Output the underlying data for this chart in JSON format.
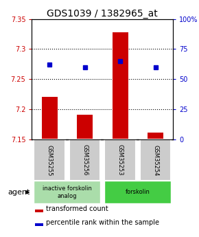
{
  "title": "GDS1039 / 1382965_at",
  "samples": [
    "GSM35255",
    "GSM35256",
    "GSM35253",
    "GSM35254"
  ],
  "bar_values": [
    7.221,
    7.191,
    7.328,
    7.162
  ],
  "bar_base": 7.15,
  "bar_color": "#cc0000",
  "dot_values": [
    62,
    60,
    65,
    60
  ],
  "dot_color": "#0000cc",
  "ylim_left": [
    7.15,
    7.35
  ],
  "ylim_right": [
    0,
    100
  ],
  "yticks_left": [
    7.15,
    7.2,
    7.25,
    7.3,
    7.35
  ],
  "yticks_right": [
    0,
    25,
    50,
    75,
    100
  ],
  "gridlines": [
    7.2,
    7.25,
    7.3
  ],
  "agent_groups": [
    {
      "label": "inactive forskolin\nanalog",
      "indices": [
        0,
        1
      ],
      "color": "#aaddaa"
    },
    {
      "label": "forskolin",
      "indices": [
        2,
        3
      ],
      "color": "#44cc44"
    }
  ],
  "agent_label": "agent",
  "legend_items": [
    {
      "color": "#cc0000",
      "label": "transformed count"
    },
    {
      "color": "#0000cc",
      "label": "percentile rank within the sample"
    }
  ],
  "bar_width": 0.45,
  "sample_box_color": "#cccccc",
  "title_fontsize": 10,
  "tick_fontsize": 7,
  "label_fontsize": 7,
  "agent_fontsize": 8,
  "legend_fontsize": 7
}
